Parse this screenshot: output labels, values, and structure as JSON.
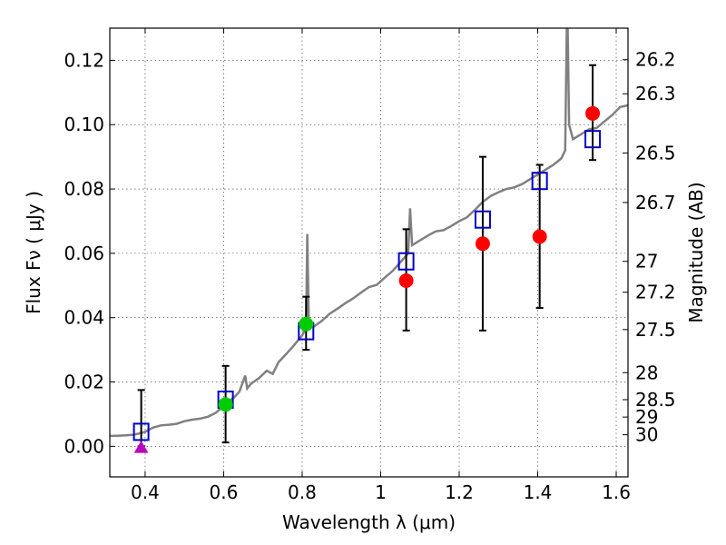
{
  "chart_data": {
    "type": "scatter",
    "xlabel": "Wavelength  λ (μm)",
    "ylabel": "Flux  Fν  ( μJy )",
    "y2label": "Magnitude (AB)",
    "xlim": [
      0.31,
      1.63
    ],
    "ylim": [
      -0.0095,
      0.13
    ],
    "grid": true,
    "x_ticks": [
      0.4,
      0.6,
      0.8,
      1.0,
      1.2,
      1.4,
      1.6
    ],
    "x_tick_labels": [
      "0.4",
      "0.6",
      "0.8",
      "1",
      "1.2",
      "1.4",
      "1.6"
    ],
    "y_ticks": [
      0.0,
      0.02,
      0.04,
      0.06,
      0.08,
      0.1,
      0.12
    ],
    "y_tick_labels": [
      "0.00",
      "0.02",
      "0.04",
      "0.06",
      "0.08",
      "0.10",
      "0.12"
    ],
    "y2_ticks": [
      {
        "label": "26.2",
        "flux": 0.1202
      },
      {
        "label": "26.3",
        "flux": 0.1096
      },
      {
        "label": "26.5",
        "flux": 0.0912
      },
      {
        "label": "26.7",
        "flux": 0.0758
      },
      {
        "label": "27",
        "flux": 0.0575
      },
      {
        "label": "27.2",
        "flux": 0.0479
      },
      {
        "label": "27.5",
        "flux": 0.0363
      },
      {
        "label": "28",
        "flux": 0.0229
      },
      {
        "label": "28.5",
        "flux": 0.0145
      },
      {
        "label": "29",
        "flux": 0.0091
      },
      {
        "label": "30",
        "flux": 0.0036
      }
    ],
    "model_spectrum": {
      "color": "#808080",
      "points": [
        [
          0.31,
          0.0032
        ],
        [
          0.33,
          0.0033
        ],
        [
          0.35,
          0.0034
        ],
        [
          0.37,
          0.0036
        ],
        [
          0.385,
          0.004
        ],
        [
          0.4,
          0.0045
        ],
        [
          0.42,
          0.0058
        ],
        [
          0.44,
          0.0065
        ],
        [
          0.46,
          0.0067
        ],
        [
          0.48,
          0.007
        ],
        [
          0.5,
          0.0078
        ],
        [
          0.52,
          0.0083
        ],
        [
          0.54,
          0.0086
        ],
        [
          0.56,
          0.0092
        ],
        [
          0.58,
          0.0104
        ],
        [
          0.595,
          0.012
        ],
        [
          0.61,
          0.0139
        ],
        [
          0.625,
          0.015
        ],
        [
          0.64,
          0.017
        ],
        [
          0.655,
          0.022
        ],
        [
          0.66,
          0.018
        ],
        [
          0.67,
          0.0195
        ],
        [
          0.69,
          0.0212
        ],
        [
          0.71,
          0.0235
        ],
        [
          0.725,
          0.0225
        ],
        [
          0.74,
          0.0262
        ],
        [
          0.76,
          0.0288
        ],
        [
          0.78,
          0.0315
        ],
        [
          0.8,
          0.0345
        ],
        [
          0.81,
          0.0368
        ],
        [
          0.813,
          0.066
        ],
        [
          0.817,
          0.038
        ],
        [
          0.83,
          0.0372
        ],
        [
          0.85,
          0.039
        ],
        [
          0.87,
          0.0412
        ],
        [
          0.89,
          0.0428
        ],
        [
          0.91,
          0.0445
        ],
        [
          0.93,
          0.046
        ],
        [
          0.95,
          0.0478
        ],
        [
          0.97,
          0.0495
        ],
        [
          0.99,
          0.0502
        ],
        [
          1.01,
          0.0524
        ],
        [
          1.03,
          0.0545
        ],
        [
          1.05,
          0.0572
        ],
        [
          1.07,
          0.06
        ],
        [
          1.075,
          0.074
        ],
        [
          1.08,
          0.0625
        ],
        [
          1.1,
          0.064
        ],
        [
          1.12,
          0.0655
        ],
        [
          1.14,
          0.0668
        ],
        [
          1.16,
          0.0672
        ],
        [
          1.18,
          0.0685
        ],
        [
          1.2,
          0.07
        ],
        [
          1.22,
          0.0712
        ],
        [
          1.24,
          0.0735
        ],
        [
          1.26,
          0.076
        ],
        [
          1.28,
          0.0778
        ],
        [
          1.3,
          0.079
        ],
        [
          1.32,
          0.08
        ],
        [
          1.34,
          0.0805
        ],
        [
          1.36,
          0.0815
        ],
        [
          1.38,
          0.083
        ],
        [
          1.4,
          0.0845
        ],
        [
          1.42,
          0.086
        ],
        [
          1.44,
          0.0875
        ],
        [
          1.46,
          0.0895
        ],
        [
          1.47,
          0.092
        ],
        [
          1.475,
          0.14
        ],
        [
          1.48,
          0.1
        ],
        [
          1.49,
          0.0955
        ],
        [
          1.51,
          0.097
        ],
        [
          1.53,
          0.0985
        ],
        [
          1.55,
          0.099
        ],
        [
          1.57,
          0.101
        ],
        [
          1.59,
          0.103
        ],
        [
          1.61,
          0.1055
        ],
        [
          1.63,
          0.106
        ]
      ]
    },
    "model_points": {
      "color": "#0000cc",
      "marker": "open-square",
      "points": [
        {
          "x": 0.39,
          "y": 0.0045
        },
        {
          "x": 0.605,
          "y": 0.0145
        },
        {
          "x": 0.81,
          "y": 0.0358
        },
        {
          "x": 1.065,
          "y": 0.0575
        },
        {
          "x": 1.26,
          "y": 0.0705
        },
        {
          "x": 1.405,
          "y": 0.0825
        },
        {
          "x": 1.54,
          "y": 0.0955
        }
      ]
    },
    "errorbars": [
      {
        "x": 0.39,
        "low": 0.0,
        "high": 0.0175
      },
      {
        "x": 0.605,
        "low": 0.0012,
        "high": 0.025
      },
      {
        "x": 0.81,
        "low": 0.03,
        "high": 0.0465
      },
      {
        "x": 1.065,
        "low": 0.036,
        "high": 0.0675
      },
      {
        "x": 1.26,
        "low": 0.036,
        "high": 0.09
      },
      {
        "x": 1.405,
        "low": 0.043,
        "high": 0.0875
      },
      {
        "x": 1.54,
        "low": 0.089,
        "high": 0.1185
      }
    ],
    "observed_points": [
      {
        "x": 0.39,
        "y": -0.0005,
        "color": "#bb00bb",
        "marker": "triangle"
      },
      {
        "x": 0.605,
        "y": 0.013,
        "color": "#00cc00",
        "marker": "circle"
      },
      {
        "x": 0.81,
        "y": 0.038,
        "color": "#00cc00",
        "marker": "circle"
      },
      {
        "x": 1.065,
        "y": 0.0515,
        "color": "#ff0000",
        "marker": "circle"
      },
      {
        "x": 1.26,
        "y": 0.063,
        "color": "#ff0000",
        "marker": "circle"
      },
      {
        "x": 1.405,
        "y": 0.0652,
        "color": "#ff0000",
        "marker": "circle"
      },
      {
        "x": 1.54,
        "y": 0.1035,
        "color": "#ff0000",
        "marker": "circle"
      }
    ]
  }
}
